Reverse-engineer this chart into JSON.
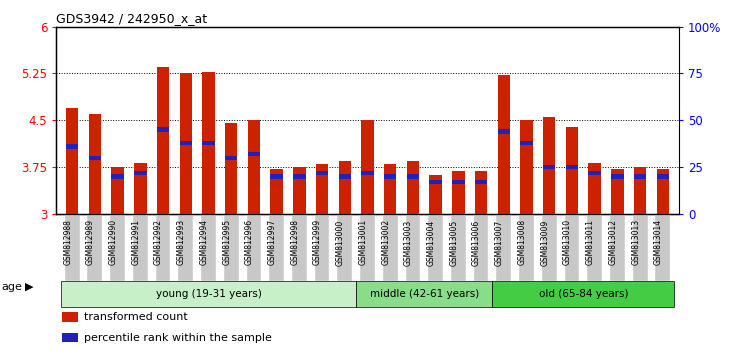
{
  "title": "GDS3942 / 242950_x_at",
  "samples": [
    "GSM812988",
    "GSM812989",
    "GSM812990",
    "GSM812991",
    "GSM812992",
    "GSM812993",
    "GSM812994",
    "GSM812995",
    "GSM812996",
    "GSM812997",
    "GSM812998",
    "GSM812999",
    "GSM813000",
    "GSM813001",
    "GSM813002",
    "GSM813003",
    "GSM813004",
    "GSM813005",
    "GSM813006",
    "GSM813007",
    "GSM813008",
    "GSM813009",
    "GSM813010",
    "GSM813011",
    "GSM813012",
    "GSM813013",
    "GSM813014"
  ],
  "transformed_count": [
    4.7,
    4.6,
    3.75,
    3.82,
    5.35,
    5.25,
    5.28,
    4.45,
    4.5,
    3.72,
    3.75,
    3.8,
    3.85,
    4.5,
    3.8,
    3.85,
    3.62,
    3.68,
    3.68,
    5.22,
    4.5,
    4.55,
    4.4,
    3.82,
    3.72,
    3.75,
    3.72
  ],
  "percentile_rank": [
    36,
    30,
    20,
    22,
    45,
    38,
    38,
    30,
    32,
    20,
    20,
    22,
    20,
    22,
    20,
    20,
    17,
    17,
    17,
    44,
    38,
    25,
    25,
    22,
    20,
    20,
    20
  ],
  "groups": [
    {
      "label": "young (19-31 years)",
      "start": 0,
      "end": 13,
      "color": "#c8f0c8"
    },
    {
      "label": "middle (42-61 years)",
      "start": 13,
      "end": 19,
      "color": "#88dd88"
    },
    {
      "label": "old (65-84 years)",
      "start": 19,
      "end": 27,
      "color": "#44cc44"
    }
  ],
  "ylim_left": [
    3.0,
    6.0
  ],
  "ylim_right": [
    0,
    100
  ],
  "yticks_left": [
    3.0,
    3.75,
    4.5,
    5.25,
    6.0
  ],
  "ytick_labels_left": [
    "3",
    "3.75",
    "4.5",
    "5.25",
    "6"
  ],
  "yticks_right": [
    0,
    25,
    50,
    75,
    100
  ],
  "ytick_labels_right": [
    "0",
    "25",
    "50",
    "75",
    "100%"
  ],
  "bar_color": "#cc2200",
  "percentile_color": "#2222bb",
  "background_color": "#ffffff",
  "bar_width": 0.55,
  "tick_label_bg": "#c8c8c8",
  "legend_items": [
    {
      "color": "#cc2200",
      "label": "transformed count"
    },
    {
      "color": "#2222bb",
      "label": "percentile rank within the sample"
    }
  ]
}
